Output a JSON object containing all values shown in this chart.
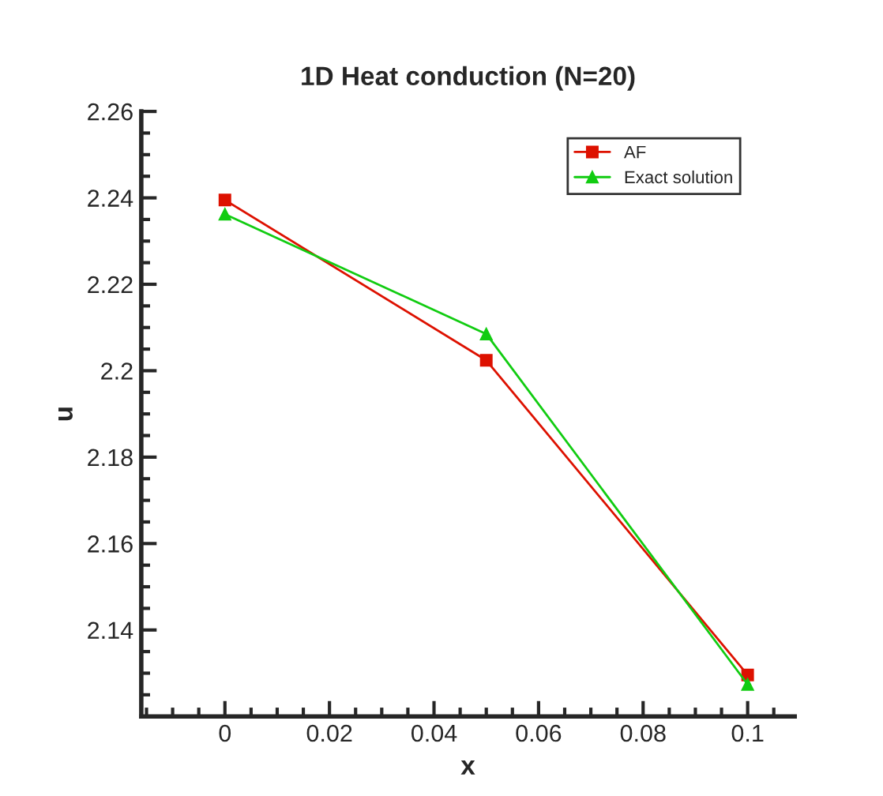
{
  "chart_data": {
    "type": "line",
    "title": "1D Heat conduction (N=20)",
    "xlabel": "x",
    "ylabel": "u",
    "x": [
      0,
      0.05,
      0.1
    ],
    "series": [
      {
        "name": "AF",
        "color": "#dd1100",
        "marker": "square",
        "values": [
          2.2395,
          2.2024,
          2.1296
        ]
      },
      {
        "name": "Exact solution",
        "color": "#11cc11",
        "marker": "triangle",
        "values": [
          2.2362,
          2.2085,
          2.1274
        ]
      }
    ],
    "xlim": [
      -0.016,
      0.109
    ],
    "xticks": [
      0,
      0.02,
      0.04,
      0.06,
      0.08,
      0.1
    ],
    "ylim": [
      2.12,
      2.26
    ],
    "yticks": [
      2.14,
      2.16,
      2.18,
      2.2,
      2.22,
      2.24,
      2.26
    ],
    "grid": false,
    "legend": "top right",
    "line_style": "solid"
  }
}
